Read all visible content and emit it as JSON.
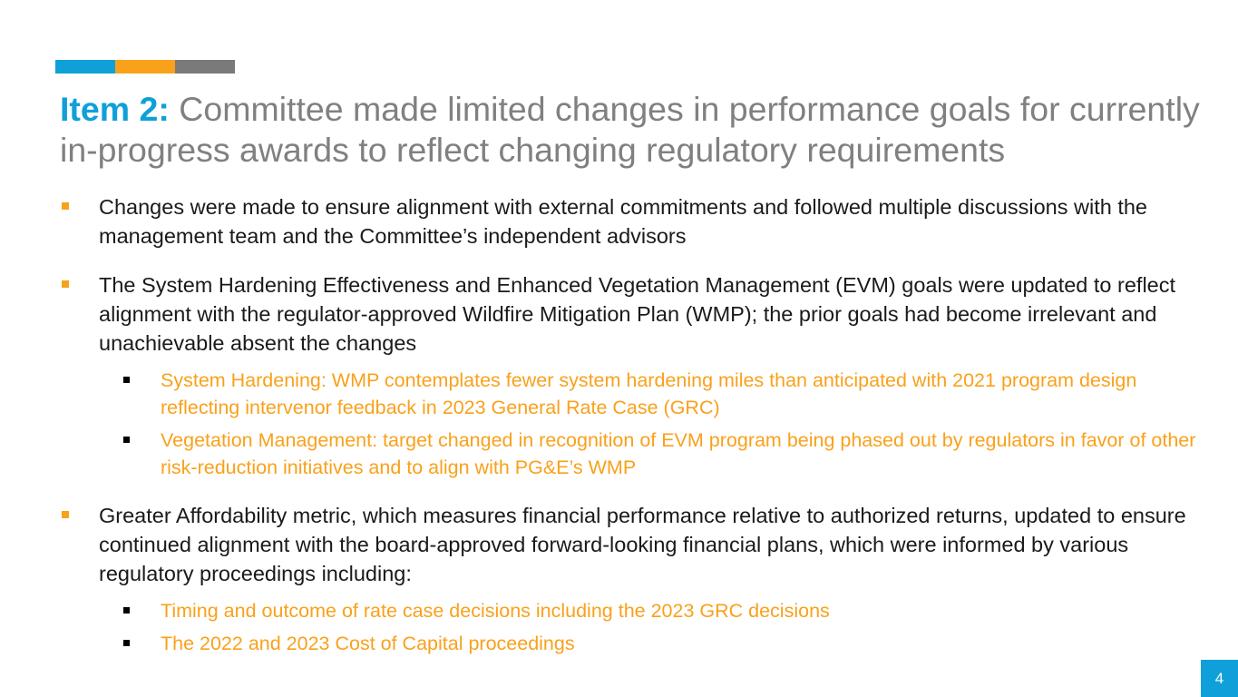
{
  "colors": {
    "blue": "#0fa0d9",
    "orange": "#f9a11b",
    "gray": "#7a7a7a",
    "title_gray": "#808080",
    "body_text": "#1a1a1a"
  },
  "title": {
    "lead": "Item 2:",
    "text": " Committee made limited changes in performance goals for currently in-progress awards to reflect changing regulatory requirements"
  },
  "bullets": [
    {
      "text": "Changes were made to ensure alignment with external commitments and followed multiple discussions with the management team and the Committee’s independent advisors",
      "sub": []
    },
    {
      "text": "The System Hardening Effectiveness and Enhanced Vegetation Management (EVM) goals were updated to reflect alignment with the regulator-approved Wildfire Mitigation Plan (WMP); the prior goals had become irrelevant and unachievable absent the changes",
      "sub": [
        "System Hardening: WMP contemplates fewer system hardening miles than anticipated with 2021 program design reflecting intervenor feedback in 2023 General Rate Case (GRC)",
        "Vegetation Management: target changed in recognition of EVM program being phased out by regulators in favor of other risk-reduction initiatives and to align with PG&E’s WMP"
      ]
    },
    {
      "text": "Greater Affordability metric, which measures financial performance relative to authorized returns, updated to ensure continued alignment with the board-approved forward-looking financial plans, which were informed by various regulatory proceedings including:",
      "sub": [
        "Timing and outcome of rate case decisions including the 2023 GRC decisions",
        "The 2022 and 2023 Cost of Capital proceedings"
      ]
    }
  ],
  "page_number": "4"
}
